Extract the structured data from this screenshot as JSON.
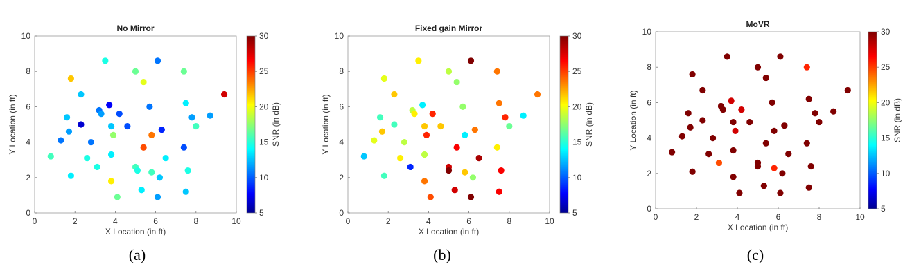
{
  "chart_data": [
    {
      "type": "scatter",
      "title": "No Mirror",
      "caption": "(a)",
      "xlabel": "X Location (in ft)",
      "ylabel": "Y Location (in ft)",
      "xlim": [
        0,
        10
      ],
      "ylim": [
        0,
        10
      ],
      "xticks": [
        "0",
        "2",
        "4",
        "6",
        "8",
        "10"
      ],
      "yticks": [
        "0",
        "2",
        "4",
        "6",
        "8",
        "10"
      ],
      "colorbar": {
        "label": "SNR (in dB)",
        "min": 5,
        "max": 30,
        "ticks": [
          "5",
          "10",
          "15",
          "20",
          "25",
          "30"
        ],
        "colormap": "jet"
      },
      "grid": false,
      "points": [
        {
          "x": 0.8,
          "y": 3.2,
          "snr": 16
        },
        {
          "x": 1.3,
          "y": 4.1,
          "snr": 11
        },
        {
          "x": 1.6,
          "y": 5.4,
          "snr": 13
        },
        {
          "x": 1.7,
          "y": 4.6,
          "snr": 12
        },
        {
          "x": 1.8,
          "y": 7.6,
          "snr": 22
        },
        {
          "x": 1.8,
          "y": 2.1,
          "snr": 14
        },
        {
          "x": 2.3,
          "y": 6.7,
          "snr": 13
        },
        {
          "x": 2.3,
          "y": 5.0,
          "snr": 7
        },
        {
          "x": 2.6,
          "y": 3.1,
          "snr": 15
        },
        {
          "x": 2.8,
          "y": 4.0,
          "snr": 11
        },
        {
          "x": 3.1,
          "y": 2.6,
          "snr": 15
        },
        {
          "x": 3.2,
          "y": 5.8,
          "snr": 11
        },
        {
          "x": 3.3,
          "y": 5.6,
          "snr": 12
        },
        {
          "x": 3.5,
          "y": 8.6,
          "snr": 15
        },
        {
          "x": 3.7,
          "y": 6.1,
          "snr": 8
        },
        {
          "x": 3.8,
          "y": 4.9,
          "snr": 13
        },
        {
          "x": 3.8,
          "y": 3.3,
          "snr": 14
        },
        {
          "x": 3.8,
          "y": 1.8,
          "snr": 21
        },
        {
          "x": 3.9,
          "y": 4.4,
          "snr": 18
        },
        {
          "x": 4.1,
          "y": 0.9,
          "snr": 17
        },
        {
          "x": 4.2,
          "y": 5.6,
          "snr": 10
        },
        {
          "x": 4.6,
          "y": 4.9,
          "snr": 10
        },
        {
          "x": 5.0,
          "y": 8.0,
          "snr": 17
        },
        {
          "x": 5.0,
          "y": 2.6,
          "snr": 16
        },
        {
          "x": 5.1,
          "y": 2.4,
          "snr": 15
        },
        {
          "x": 5.3,
          "y": 1.3,
          "snr": 14
        },
        {
          "x": 5.4,
          "y": 7.4,
          "snr": 20
        },
        {
          "x": 5.4,
          "y": 3.7,
          "snr": 25
        },
        {
          "x": 5.7,
          "y": 6.0,
          "snr": 11
        },
        {
          "x": 5.8,
          "y": 4.4,
          "snr": 24
        },
        {
          "x": 5.8,
          "y": 2.3,
          "snr": 16
        },
        {
          "x": 6.1,
          "y": 8.6,
          "snr": 11
        },
        {
          "x": 6.1,
          "y": 0.9,
          "snr": 12
        },
        {
          "x": 6.2,
          "y": 2.0,
          "snr": 13
        },
        {
          "x": 6.3,
          "y": 4.7,
          "snr": 9
        },
        {
          "x": 6.5,
          "y": 3.1,
          "snr": 14
        },
        {
          "x": 7.4,
          "y": 8.0,
          "snr": 17
        },
        {
          "x": 7.4,
          "y": 3.7,
          "snr": 10
        },
        {
          "x": 7.5,
          "y": 6.2,
          "snr": 14
        },
        {
          "x": 7.5,
          "y": 1.2,
          "snr": 13
        },
        {
          "x": 7.6,
          "y": 2.4,
          "snr": 15
        },
        {
          "x": 7.8,
          "y": 5.4,
          "snr": 12
        },
        {
          "x": 8.0,
          "y": 4.9,
          "snr": 16
        },
        {
          "x": 8.7,
          "y": 5.5,
          "snr": 12
        },
        {
          "x": 9.4,
          "y": 6.7,
          "snr": 28
        }
      ]
    },
    {
      "type": "scatter",
      "title": "Fixed gain Mirror",
      "caption": "(b)",
      "xlabel": "X Location (in ft)",
      "ylabel": "Y Location (in ft)",
      "xlim": [
        0,
        10
      ],
      "ylim": [
        0,
        10
      ],
      "xticks": [
        "0",
        "2",
        "4",
        "6",
        "8",
        "10"
      ],
      "yticks": [
        "0",
        "2",
        "4",
        "6",
        "8",
        "10"
      ],
      "colorbar": {
        "label": "SNR (in dB)",
        "min": 5,
        "max": 30,
        "ticks": [
          "5",
          "10",
          "15",
          "20",
          "25",
          "30"
        ],
        "colormap": "jet"
      },
      "grid": false,
      "points": [
        {
          "x": 0.8,
          "y": 3.2,
          "snr": 13
        },
        {
          "x": 1.3,
          "y": 4.1,
          "snr": 20
        },
        {
          "x": 1.6,
          "y": 5.4,
          "snr": 16
        },
        {
          "x": 1.7,
          "y": 4.6,
          "snr": 22
        },
        {
          "x": 1.8,
          "y": 7.6,
          "snr": 20
        },
        {
          "x": 1.8,
          "y": 2.1,
          "snr": 16
        },
        {
          "x": 2.3,
          "y": 6.7,
          "snr": 22
        },
        {
          "x": 2.3,
          "y": 5.0,
          "snr": 16
        },
        {
          "x": 2.6,
          "y": 3.1,
          "snr": 21
        },
        {
          "x": 2.8,
          "y": 4.0,
          "snr": 19
        },
        {
          "x": 3.1,
          "y": 2.6,
          "snr": 9
        },
        {
          "x": 3.2,
          "y": 5.8,
          "snr": 19
        },
        {
          "x": 3.3,
          "y": 5.6,
          "snr": 21
        },
        {
          "x": 3.5,
          "y": 8.6,
          "snr": 21
        },
        {
          "x": 3.7,
          "y": 6.1,
          "snr": 14
        },
        {
          "x": 3.8,
          "y": 4.9,
          "snr": 22
        },
        {
          "x": 3.8,
          "y": 3.3,
          "snr": 19
        },
        {
          "x": 3.8,
          "y": 1.8,
          "snr": 24
        },
        {
          "x": 3.9,
          "y": 4.4,
          "snr": 26
        },
        {
          "x": 4.1,
          "y": 0.9,
          "snr": 25
        },
        {
          "x": 4.2,
          "y": 5.6,
          "snr": 26
        },
        {
          "x": 4.6,
          "y": 4.9,
          "snr": 22
        },
        {
          "x": 5.0,
          "y": 8.0,
          "snr": 19
        },
        {
          "x": 5.0,
          "y": 2.6,
          "snr": 28
        },
        {
          "x": 5.0,
          "y": 2.4,
          "snr": 30
        },
        {
          "x": 5.3,
          "y": 1.3,
          "snr": 28
        },
        {
          "x": 5.4,
          "y": 7.4,
          "snr": 18
        },
        {
          "x": 5.4,
          "y": 3.7,
          "snr": 27
        },
        {
          "x": 5.7,
          "y": 6.0,
          "snr": 18
        },
        {
          "x": 5.8,
          "y": 4.4,
          "snr": 14
        },
        {
          "x": 5.8,
          "y": 2.3,
          "snr": 22
        },
        {
          "x": 6.1,
          "y": 8.6,
          "snr": 30
        },
        {
          "x": 6.1,
          "y": 0.9,
          "snr": 30
        },
        {
          "x": 6.2,
          "y": 2.0,
          "snr": 18
        },
        {
          "x": 6.3,
          "y": 4.7,
          "snr": 24
        },
        {
          "x": 6.5,
          "y": 3.1,
          "snr": 29
        },
        {
          "x": 7.4,
          "y": 8.0,
          "snr": 24
        },
        {
          "x": 7.4,
          "y": 3.7,
          "snr": 21
        },
        {
          "x": 7.5,
          "y": 6.2,
          "snr": 24
        },
        {
          "x": 7.5,
          "y": 1.2,
          "snr": 27
        },
        {
          "x": 7.6,
          "y": 2.4,
          "snr": 27
        },
        {
          "x": 7.8,
          "y": 5.4,
          "snr": 26
        },
        {
          "x": 8.0,
          "y": 4.9,
          "snr": 17
        },
        {
          "x": 8.7,
          "y": 5.5,
          "snr": 14
        },
        {
          "x": 9.4,
          "y": 6.7,
          "snr": 24
        }
      ]
    },
    {
      "type": "scatter",
      "title": "MoVR",
      "caption": "(c)",
      "xlabel": "X Location (in ft)",
      "ylabel": "Y Location (in ft)",
      "xlim": [
        0,
        10
      ],
      "ylim": [
        0,
        10
      ],
      "xticks": [
        "0",
        "2",
        "4",
        "6",
        "8",
        "10"
      ],
      "yticks": [
        "0",
        "2",
        "4",
        "6",
        "8",
        "10"
      ],
      "colorbar": {
        "label": "SNR (in dB)",
        "min": 5,
        "max": 30,
        "ticks": [
          "5",
          "10",
          "15",
          "20",
          "25",
          "30"
        ],
        "colormap": "jet"
      },
      "grid": false,
      "points": [
        {
          "x": 0.8,
          "y": 3.2,
          "snr": 30
        },
        {
          "x": 1.3,
          "y": 4.1,
          "snr": 30
        },
        {
          "x": 1.6,
          "y": 5.4,
          "snr": 30
        },
        {
          "x": 1.7,
          "y": 4.6,
          "snr": 30
        },
        {
          "x": 1.8,
          "y": 7.6,
          "snr": 30
        },
        {
          "x": 1.8,
          "y": 2.1,
          "snr": 30
        },
        {
          "x": 2.3,
          "y": 6.7,
          "snr": 30
        },
        {
          "x": 2.3,
          "y": 5.0,
          "snr": 30
        },
        {
          "x": 2.6,
          "y": 3.1,
          "snr": 30
        },
        {
          "x": 2.8,
          "y": 4.0,
          "snr": 30
        },
        {
          "x": 3.1,
          "y": 2.6,
          "snr": 25
        },
        {
          "x": 3.2,
          "y": 5.8,
          "snr": 30
        },
        {
          "x": 3.3,
          "y": 5.6,
          "snr": 30
        },
        {
          "x": 3.5,
          "y": 8.6,
          "snr": 30
        },
        {
          "x": 3.7,
          "y": 6.1,
          "snr": 28
        },
        {
          "x": 3.8,
          "y": 4.9,
          "snr": 30
        },
        {
          "x": 3.8,
          "y": 3.3,
          "snr": 30
        },
        {
          "x": 3.8,
          "y": 1.8,
          "snr": 30
        },
        {
          "x": 3.9,
          "y": 4.4,
          "snr": 28
        },
        {
          "x": 4.1,
          "y": 0.9,
          "snr": 30
        },
        {
          "x": 4.2,
          "y": 5.6,
          "snr": 28
        },
        {
          "x": 4.6,
          "y": 4.9,
          "snr": 30
        },
        {
          "x": 5.0,
          "y": 8.0,
          "snr": 30
        },
        {
          "x": 5.0,
          "y": 2.6,
          "snr": 30
        },
        {
          "x": 5.0,
          "y": 2.4,
          "snr": 30
        },
        {
          "x": 5.3,
          "y": 1.3,
          "snr": 30
        },
        {
          "x": 5.4,
          "y": 7.4,
          "snr": 30
        },
        {
          "x": 5.4,
          "y": 3.7,
          "snr": 30
        },
        {
          "x": 5.7,
          "y": 6.0,
          "snr": 30
        },
        {
          "x": 5.8,
          "y": 4.4,
          "snr": 30
        },
        {
          "x": 5.8,
          "y": 2.3,
          "snr": 26
        },
        {
          "x": 6.1,
          "y": 8.6,
          "snr": 30
        },
        {
          "x": 6.1,
          "y": 0.9,
          "snr": 30
        },
        {
          "x": 6.2,
          "y": 2.0,
          "snr": 30
        },
        {
          "x": 6.3,
          "y": 4.7,
          "snr": 30
        },
        {
          "x": 6.5,
          "y": 3.1,
          "snr": 30
        },
        {
          "x": 7.4,
          "y": 8.0,
          "snr": 26
        },
        {
          "x": 7.4,
          "y": 3.7,
          "snr": 30
        },
        {
          "x": 7.5,
          "y": 6.2,
          "snr": 30
        },
        {
          "x": 7.5,
          "y": 1.2,
          "snr": 30
        },
        {
          "x": 7.6,
          "y": 2.4,
          "snr": 30
        },
        {
          "x": 7.8,
          "y": 5.4,
          "snr": 30
        },
        {
          "x": 8.0,
          "y": 4.9,
          "snr": 30
        },
        {
          "x": 8.7,
          "y": 5.5,
          "snr": 30
        },
        {
          "x": 9.4,
          "y": 6.7,
          "snr": 30
        }
      ]
    }
  ]
}
